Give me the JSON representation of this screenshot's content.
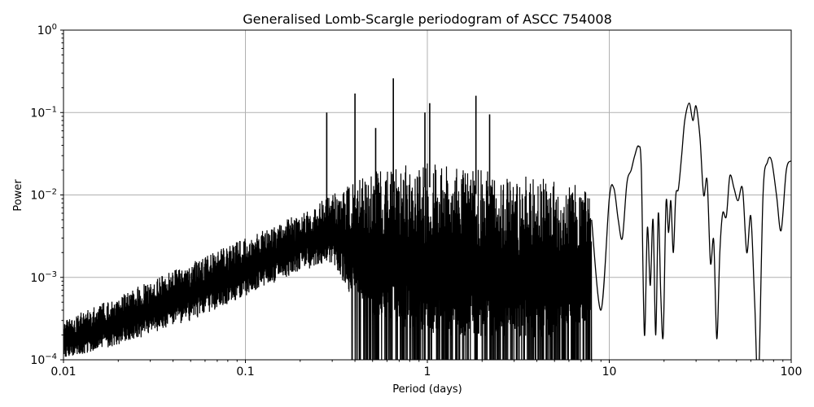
{
  "chart_data": {
    "type": "line",
    "title": "Generalised Lomb-Scargle periodogram of ASCC 754008",
    "xlabel": "Period (days)",
    "ylabel": "Power",
    "xscale": "log",
    "yscale": "log",
    "xlim": [
      0.01,
      100
    ],
    "ylim": [
      0.0001,
      1
    ],
    "grid": true,
    "legend": null,
    "x_ticks": [
      {
        "value": 0.01,
        "label": "0.01"
      },
      {
        "value": 0.1,
        "label": "0.1"
      },
      {
        "value": 1,
        "label": "1"
      },
      {
        "value": 10,
        "label": "10"
      },
      {
        "value": 100,
        "label": "100"
      }
    ],
    "y_ticks": [
      {
        "value": 1,
        "base": "10",
        "exp": "0"
      },
      {
        "value": 0.1,
        "base": "10",
        "exp": "−1"
      },
      {
        "value": 0.01,
        "base": "10",
        "exp": "−2"
      },
      {
        "value": 0.001,
        "base": "10",
        "exp": "−3"
      },
      {
        "value": 0.0001,
        "base": "10",
        "exp": "−4"
      }
    ],
    "line_color": "#000000",
    "grid_color": "#b0b0b0",
    "notable_peaks": [
      {
        "period": 0.28,
        "power": 0.1
      },
      {
        "period": 0.4,
        "power": 0.17
      },
      {
        "period": 0.52,
        "power": 0.065
      },
      {
        "period": 0.65,
        "power": 0.26
      },
      {
        "period": 0.97,
        "power": 0.1
      },
      {
        "period": 1.03,
        "power": 0.13
      },
      {
        "period": 1.85,
        "power": 0.16
      },
      {
        "period": 2.2,
        "power": 0.095
      },
      {
        "period": 14.5,
        "power": 0.039
      },
      {
        "period": 27.5,
        "power": 0.13
      },
      {
        "period": 30.0,
        "power": 0.12
      },
      {
        "period": 46.0,
        "power": 0.017
      },
      {
        "period": 78.0,
        "power": 0.026
      }
    ],
    "envelope": {
      "x": [
        0.01,
        0.02,
        0.05,
        0.1,
        0.2,
        0.3,
        0.5,
        1.0,
        2.0,
        5.0,
        8.0
      ],
      "upper": [
        0.0003,
        0.0006,
        0.0015,
        0.003,
        0.006,
        0.01,
        0.02,
        0.025,
        0.02,
        0.015,
        0.012
      ],
      "lower": [
        0.0001,
        0.00015,
        0.0003,
        0.0006,
        0.0012,
        0.0015,
        0.0002,
        0.0001,
        0.0001,
        0.0001,
        0.0002
      ]
    },
    "smooth_tail": {
      "x": [
        8.0,
        9.0,
        10.0,
        10.6,
        11.2,
        11.8,
        12.5,
        13.2,
        13.8,
        14.5,
        15.0,
        15.6,
        16.2,
        16.8,
        17.4,
        18.0,
        18.6,
        19.2,
        19.8,
        20.5,
        21.2,
        21.8,
        22.5,
        23.2,
        24.0,
        25.0,
        26.0,
        27.5,
        28.8,
        30.0,
        31.5,
        33.0,
        34.5,
        36.0,
        37.5,
        39.0,
        40.5,
        42.0,
        44.0,
        46.0,
        48.5,
        51.0,
        54.0,
        57.0,
        60.0,
        63.0,
        66.0,
        70.0,
        74.0,
        78.0,
        83.0,
        88.0,
        94.0,
        100.0
      ],
      "y": [
        0.005,
        0.0004,
        0.009,
        0.012,
        0.005,
        0.003,
        0.014,
        0.02,
        0.03,
        0.039,
        0.02,
        0.0002,
        0.004,
        0.0008,
        0.005,
        0.0002,
        0.006,
        0.0006,
        0.0002,
        0.008,
        0.0035,
        0.0085,
        0.002,
        0.0098,
        0.012,
        0.03,
        0.08,
        0.13,
        0.08,
        0.12,
        0.05,
        0.01,
        0.015,
        0.0015,
        0.0028,
        0.00018,
        0.002,
        0.006,
        0.0055,
        0.017,
        0.012,
        0.0085,
        0.012,
        0.002,
        0.0055,
        0.00048,
        5e-05,
        0.01,
        0.025,
        0.026,
        0.01,
        0.0037,
        0.02,
        0.026
      ]
    }
  }
}
